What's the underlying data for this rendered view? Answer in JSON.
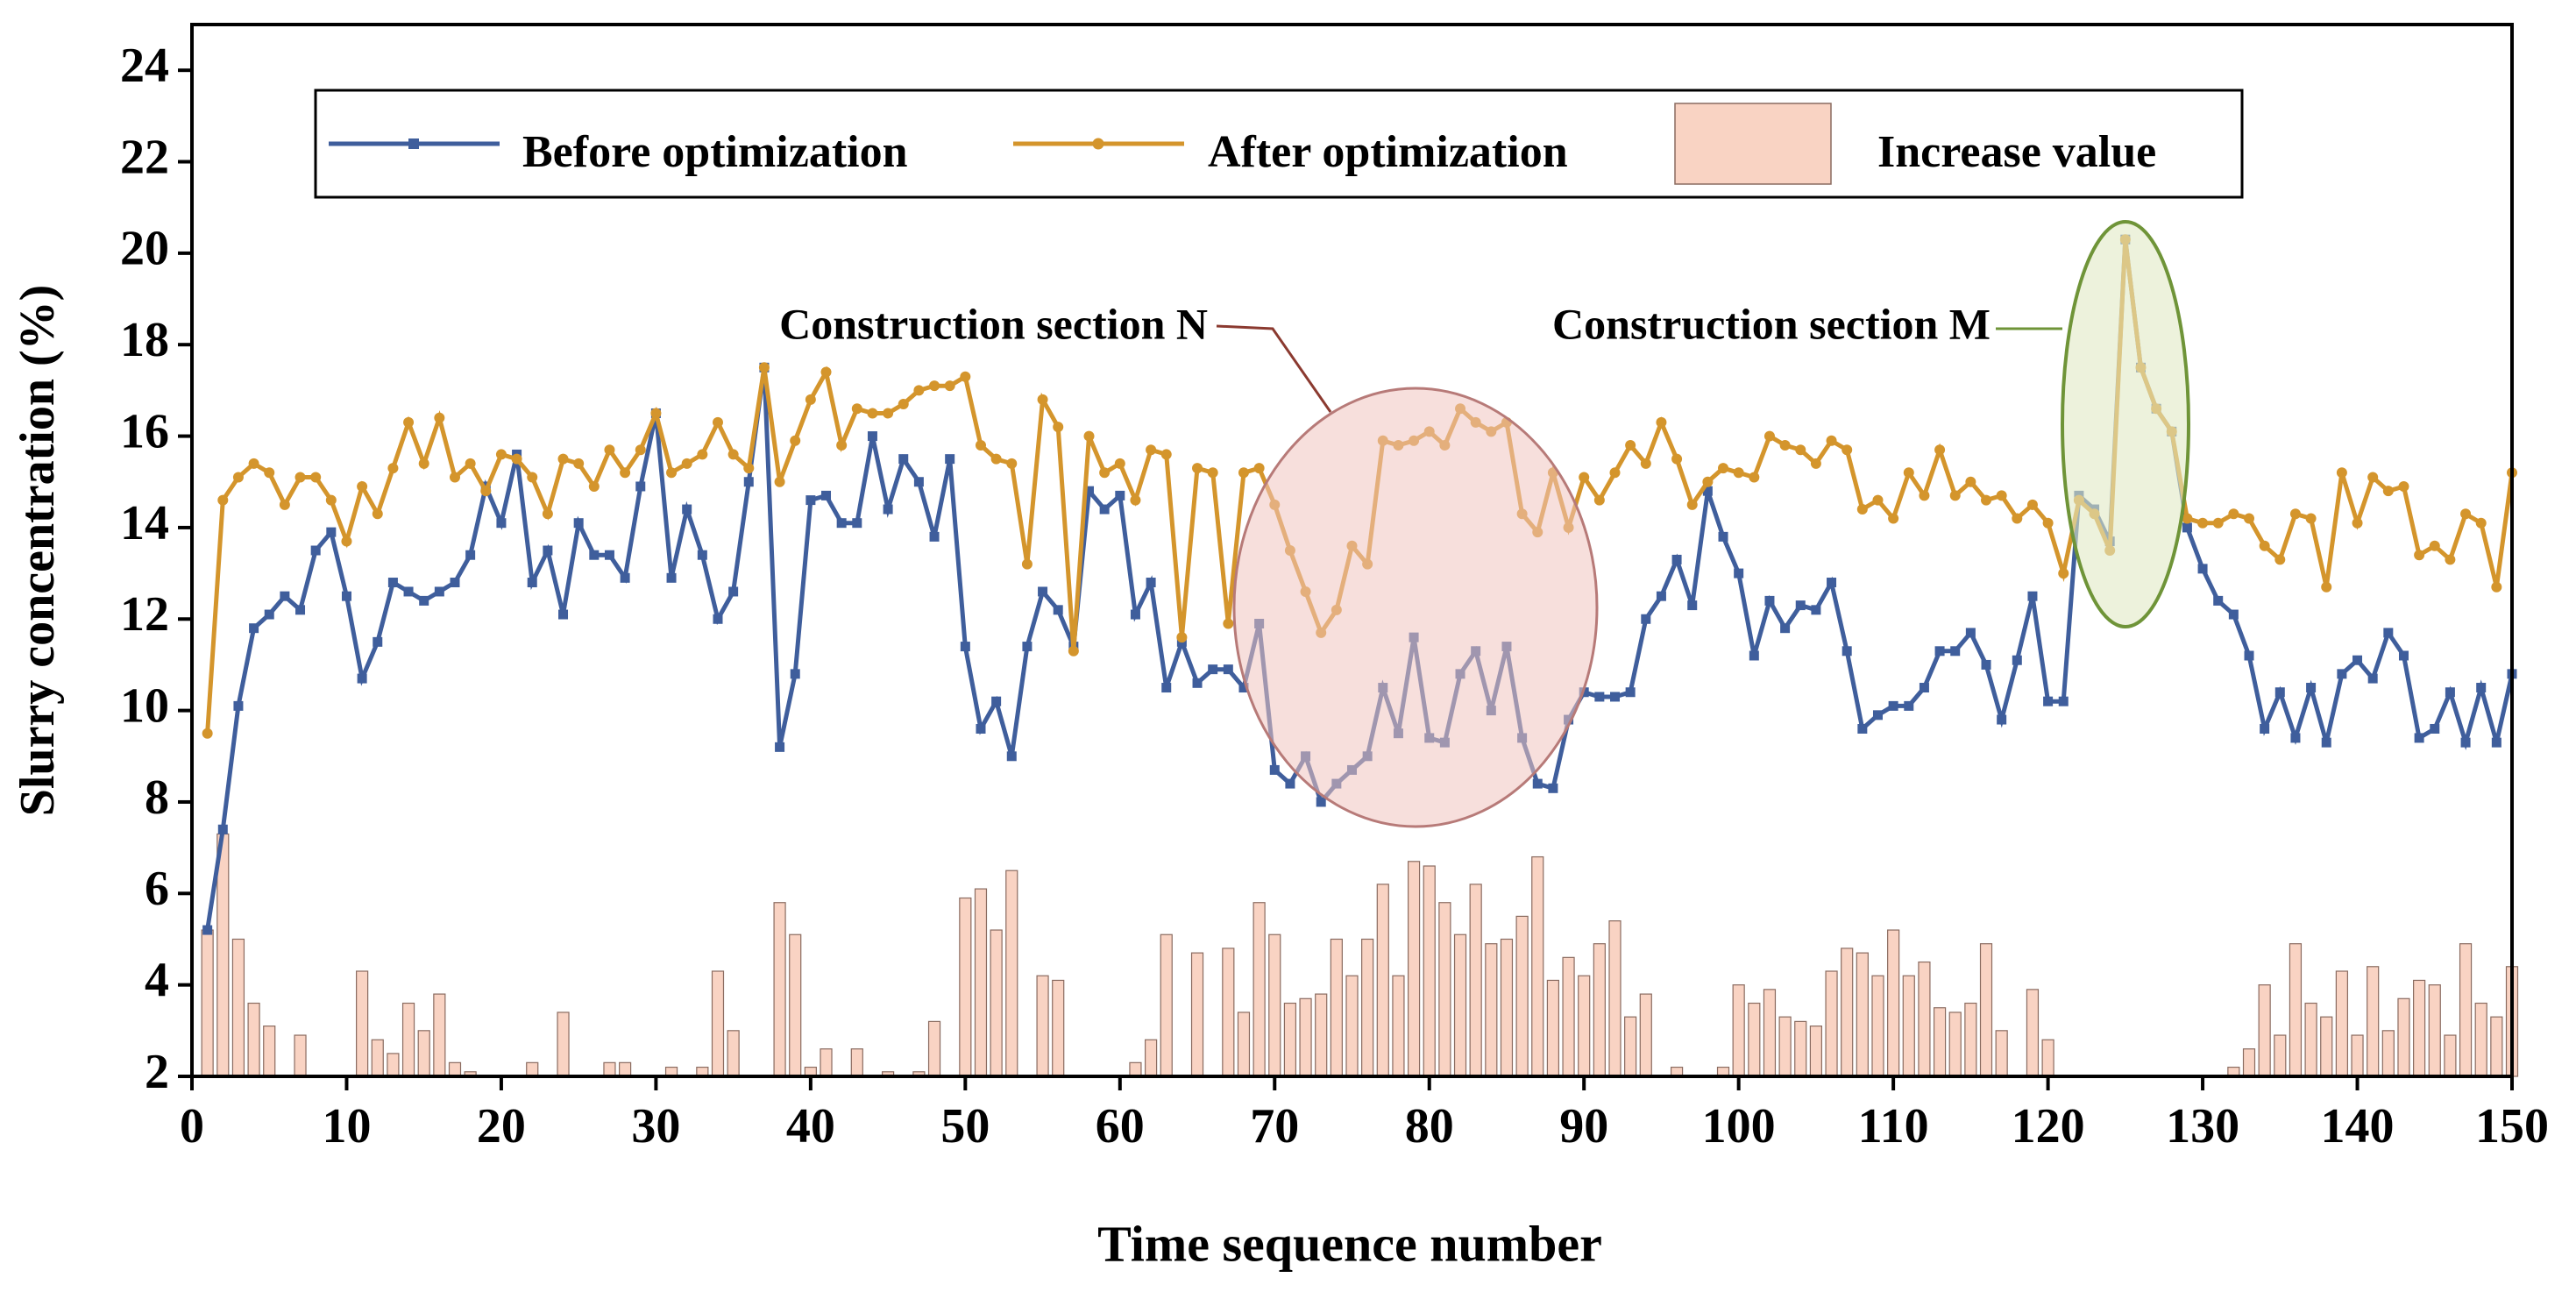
{
  "chart_data": {
    "type": "line",
    "xlabel": "Time sequence number",
    "ylabel": "Slurry concentration (%)",
    "xlim": [
      0,
      150
    ],
    "ylim": [
      2,
      25
    ],
    "xticks": [
      0,
      10,
      20,
      30,
      40,
      50,
      60,
      70,
      80,
      90,
      100,
      110,
      120,
      130,
      140,
      150
    ],
    "yticks": [
      2,
      4,
      6,
      8,
      10,
      12,
      14,
      16,
      18,
      20,
      22,
      24
    ],
    "annotations": [
      "Construction section N",
      "Construction section M"
    ],
    "x": [
      1,
      2,
      3,
      4,
      5,
      6,
      7,
      8,
      9,
      10,
      11,
      12,
      13,
      14,
      15,
      16,
      17,
      18,
      19,
      20,
      21,
      22,
      23,
      24,
      25,
      26,
      27,
      28,
      29,
      30,
      31,
      32,
      33,
      34,
      35,
      36,
      37,
      38,
      39,
      40,
      41,
      42,
      43,
      44,
      45,
      46,
      47,
      48,
      49,
      50,
      51,
      52,
      53,
      54,
      55,
      56,
      57,
      58,
      59,
      60,
      61,
      62,
      63,
      64,
      65,
      66,
      67,
      68,
      69,
      70,
      71,
      72,
      73,
      74,
      75,
      76,
      77,
      78,
      79,
      80,
      81,
      82,
      83,
      84,
      85,
      86,
      87,
      88,
      89,
      90,
      91,
      92,
      93,
      94,
      95,
      96,
      97,
      98,
      99,
      100,
      101,
      102,
      103,
      104,
      105,
      106,
      107,
      108,
      109,
      110,
      111,
      112,
      113,
      114,
      115,
      116,
      117,
      118,
      119,
      120,
      121,
      122,
      123,
      124,
      125,
      126,
      127,
      128,
      129,
      130,
      131,
      132,
      133,
      134,
      135,
      136,
      137,
      138,
      139,
      140,
      141,
      142,
      143,
      144,
      145,
      146,
      147,
      148,
      149,
      150
    ],
    "series": [
      {
        "name": "Increase value",
        "type": "bar",
        "color": "#f9d3c3",
        "values": [
          5.2,
          7.3,
          5.0,
          3.6,
          3.1,
          2.0,
          2.9,
          2.0,
          2.0,
          2.0,
          4.3,
          2.8,
          2.5,
          3.6,
          3.0,
          3.8,
          2.3,
          2.1,
          2.0,
          2.0,
          2.0,
          2.3,
          2.0,
          3.4,
          2.0,
          2.0,
          2.3,
          2.3,
          2.0,
          2.0,
          2.2,
          2.0,
          2.2,
          4.3,
          3.0,
          2.0,
          2.0,
          5.8,
          5.1,
          2.2,
          2.6,
          2.0,
          2.6,
          2.0,
          2.1,
          2.0,
          2.1,
          3.2,
          2.0,
          5.9,
          6.1,
          5.2,
          6.5,
          2.0,
          4.2,
          4.1,
          2.0,
          2.0,
          2.0,
          2.0,
          2.3,
          2.8,
          5.1,
          2.0,
          4.7,
          2.0,
          4.8,
          3.4,
          5.8,
          5.1,
          3.6,
          3.7,
          3.8,
          5.0,
          4.2,
          5.0,
          6.2,
          4.2,
          6.7,
          6.6,
          5.8,
          5.1,
          6.2,
          4.9,
          5.0,
          5.5,
          6.8,
          4.1,
          4.6,
          4.2,
          4.9,
          5.4,
          3.3,
          3.8,
          2.0,
          2.2,
          2.0,
          2.0,
          2.2,
          4.0,
          3.6,
          3.9,
          3.3,
          3.2,
          3.1,
          4.3,
          4.8,
          4.7,
          4.2,
          5.2,
          4.2,
          4.5,
          3.5,
          3.4,
          3.6,
          4.9,
          3.0,
          2.0,
          3.9,
          2.8,
          2.0,
          2.0,
          2.0,
          2.0,
          2.0,
          2.0,
          2.0,
          2.0,
          2.0,
          2.0,
          2.0,
          2.2,
          2.6,
          4.0,
          2.9,
          4.9,
          3.6,
          3.3,
          4.3,
          2.9,
          4.4,
          3.0,
          3.7,
          4.1,
          4.0,
          2.9,
          4.9,
          3.6,
          3.3,
          4.4
        ]
      },
      {
        "name": "Before optimization",
        "type": "line",
        "marker": "square",
        "color": "#3f5e9c",
        "values": [
          5.2,
          7.4,
          10.1,
          11.8,
          12.1,
          12.5,
          12.2,
          13.5,
          13.9,
          12.5,
          10.7,
          11.5,
          12.8,
          12.6,
          12.4,
          12.6,
          12.8,
          13.4,
          14.9,
          14.1,
          15.6,
          12.8,
          13.5,
          12.1,
          14.1,
          13.4,
          13.4,
          12.9,
          14.9,
          16.5,
          12.9,
          14.4,
          13.4,
          12.0,
          12.6,
          15.0,
          17.5,
          9.2,
          10.8,
          14.6,
          14.7,
          14.1,
          14.1,
          16.0,
          14.4,
          15.5,
          15.0,
          13.8,
          15.5,
          11.4,
          9.6,
          10.2,
          9.0,
          11.4,
          12.6,
          12.2,
          11.4,
          14.8,
          14.4,
          14.7,
          12.1,
          12.8,
          10.5,
          11.5,
          10.6,
          10.9,
          10.9,
          10.5,
          11.9,
          8.7,
          8.4,
          9.0,
          8.0,
          8.4,
          8.7,
          9.0,
          10.5,
          9.5,
          11.6,
          9.4,
          9.3,
          10.8,
          11.3,
          10.0,
          11.4,
          9.4,
          8.4,
          8.3,
          9.8,
          10.4,
          10.3,
          10.3,
          10.4,
          12.0,
          12.5,
          13.3,
          12.3,
          14.8,
          13.8,
          13.0,
          11.2,
          12.4,
          11.8,
          12.3,
          12.2,
          12.8,
          11.3,
          9.6,
          9.9,
          10.1,
          10.1,
          10.5,
          11.3,
          11.3,
          11.7,
          11.0,
          9.8,
          11.1,
          12.5,
          10.2,
          10.2,
          14.7,
          14.4,
          13.7,
          20.3,
          17.5,
          16.6,
          16.1,
          14.0,
          13.1,
          12.4,
          12.1,
          11.2,
          9.6,
          10.4,
          9.4,
          10.5,
          9.3,
          10.8,
          11.1,
          10.7,
          11.7,
          11.2,
          9.4,
          9.6,
          10.4,
          9.3,
          10.5,
          9.3,
          10.8
        ]
      },
      {
        "name": "After optimization",
        "type": "line",
        "marker": "circle",
        "color": "#d4952c",
        "values": [
          9.5,
          14.6,
          15.1,
          15.4,
          15.2,
          14.5,
          15.1,
          15.1,
          14.6,
          13.7,
          14.9,
          14.3,
          15.3,
          16.3,
          15.4,
          16.4,
          15.1,
          15.4,
          14.8,
          15.6,
          15.5,
          15.1,
          14.3,
          15.5,
          15.4,
          14.9,
          15.7,
          15.2,
          15.7,
          16.5,
          15.2,
          15.4,
          15.6,
          16.3,
          15.6,
          15.3,
          17.5,
          15.0,
          15.9,
          16.8,
          17.4,
          15.8,
          16.6,
          16.5,
          16.5,
          16.7,
          17.0,
          17.1,
          17.1,
          17.3,
          15.8,
          15.5,
          15.4,
          13.2,
          16.8,
          16.2,
          11.3,
          16.0,
          15.2,
          15.4,
          14.6,
          15.7,
          15.6,
          11.6,
          15.3,
          15.2,
          11.9,
          15.2,
          15.3,
          14.5,
          13.5,
          12.6,
          11.7,
          12.2,
          13.6,
          13.2,
          15.9,
          15.8,
          15.9,
          16.1,
          15.8,
          16.6,
          16.3,
          16.1,
          16.3,
          14.3,
          13.9,
          15.2,
          14.0,
          15.1,
          14.6,
          15.2,
          15.8,
          15.4,
          16.3,
          15.5,
          14.5,
          15.0,
          15.3,
          15.2,
          15.1,
          16.0,
          15.8,
          15.7,
          15.4,
          15.9,
          15.7,
          14.4,
          14.6,
          14.2,
          15.2,
          14.7,
          15.7,
          14.7,
          15.0,
          14.6,
          14.7,
          14.2,
          14.5,
          14.1,
          13.0,
          14.6,
          14.3,
          13.5,
          20.3,
          17.5,
          16.6,
          16.1,
          14.2,
          14.1,
          14.1,
          14.3,
          14.2,
          13.6,
          13.3,
          14.3,
          14.2,
          12.7,
          15.2,
          14.1,
          15.1,
          14.8,
          14.9,
          13.4,
          13.6,
          13.3,
          14.3,
          14.1,
          12.7,
          15.2
        ]
      }
    ]
  }
}
